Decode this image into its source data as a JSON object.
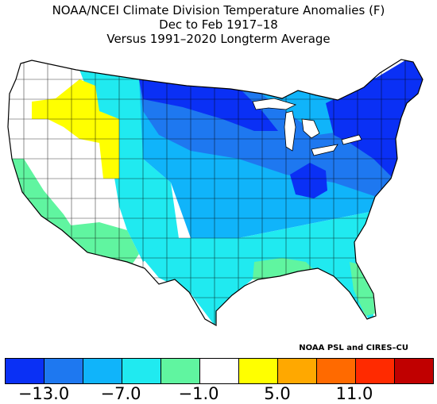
{
  "title": {
    "line1": "NOAA/NCEI Climate Division Temperature Anomalies (F)",
    "line2": "Dec to Feb 1917–18",
    "line3": "Versus 1991–2020 Longterm Average"
  },
  "credit": "NOAA PSL and CIRES–CU",
  "legend": {
    "colors": [
      "#0a30f5",
      "#1e78f0",
      "#10b4fa",
      "#20eaf0",
      "#60f5a0",
      "#ffffff",
      "#ffff00",
      "#ffa800",
      "#ff6a00",
      "#ff2a00",
      "#c00000"
    ],
    "ticks": [
      "−13.0",
      "−7.0",
      "−1.0",
      "5.0",
      "11.0"
    ]
  },
  "map_regions": {
    "northwest_warm": "#ffff00",
    "interior_west_neutral": "#ffffff",
    "pacific_coast_mild": "#60f5a0",
    "southwest_mild": "#60f5a0",
    "rockies_cool": "#20eaf0",
    "plains_cold": "#10b4fa",
    "north_central_very_cold": "#1e78f0",
    "great_lakes_extreme": "#0a30f5",
    "northeast_extreme": "#0a30f5",
    "southeast_cool": "#20eaf0",
    "gulf_coast_mild": "#60f5a0"
  }
}
